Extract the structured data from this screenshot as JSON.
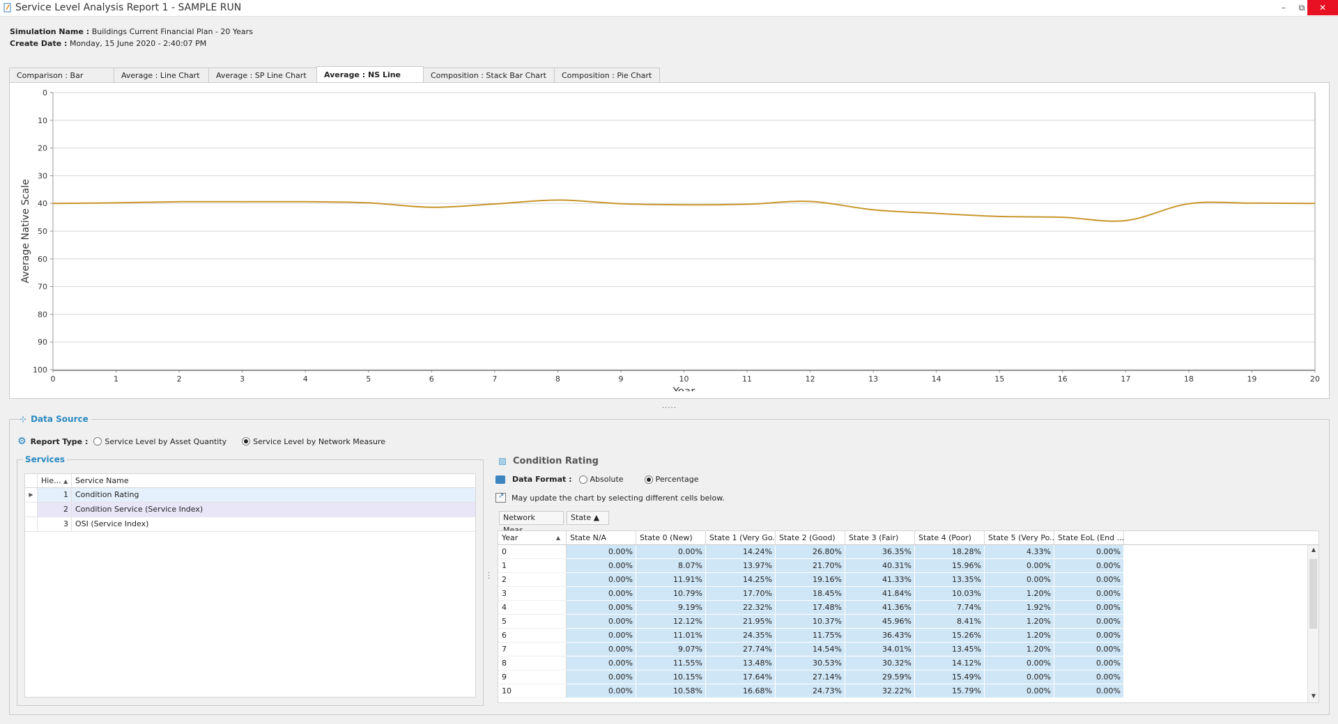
{
  "window": {
    "title": "Service Level Analysis Report 1 - SAMPLE RUN",
    "minimize": "–",
    "restore": "⧉",
    "close": "✕"
  },
  "simulation": {
    "name_label": "Simulation Name :",
    "name_value": "Buildings Current Financial Plan - 20 Years",
    "date_label": "Create Date :",
    "date_value": "Monday, 15 June 2020 - 2:40:07 PM"
  },
  "tabs": [
    {
      "label": "Comparison : Bar Chart",
      "active": false
    },
    {
      "label": "Average : Line Chart",
      "active": false
    },
    {
      "label": "Average : SP Line Chart",
      "active": false
    },
    {
      "label": "Average : NS Line Chart",
      "active": true
    },
    {
      "label": "Composition : Stack Bar Chart",
      "active": false
    },
    {
      "label": "Composition : Pie Chart",
      "active": false
    }
  ],
  "chart_data": {
    "type": "line",
    "title": "",
    "xlabel": "Year",
    "ylabel": "Average Native Scale",
    "x": [
      0,
      1,
      2,
      3,
      4,
      5,
      6,
      7,
      8,
      9,
      10,
      11,
      12,
      13,
      14,
      15,
      16,
      17,
      18,
      19,
      20
    ],
    "xlim": [
      0,
      20
    ],
    "ylim": [
      0,
      100
    ],
    "y_inverted": true,
    "y_ticks": [
      0,
      10,
      20,
      30,
      40,
      50,
      60,
      70,
      80,
      90,
      100
    ],
    "grid": true,
    "series": [
      {
        "values": [
          40.0,
          39.8,
          39.4,
          39.4,
          39.4,
          39.8,
          41.4,
          40.2,
          38.8,
          40.1,
          40.5,
          40.3,
          39.3,
          42.3,
          43.6,
          44.7,
          45.0,
          46.2,
          40.1,
          39.9,
          40.0
        ],
        "color": "#c8952a"
      }
    ]
  },
  "splitter": ".....",
  "data_source": {
    "title": "Data Source",
    "report_type_label": "Report Type :",
    "options": [
      {
        "label": "Service Level by Asset Quantity",
        "selected": false
      },
      {
        "label": "Service Level by Network Measure",
        "selected": true
      }
    ]
  },
  "services": {
    "title": "Services",
    "columns": [
      "Hie...",
      "Service Name"
    ],
    "sort_icon": "▲",
    "rows": [
      {
        "hie": "1",
        "name": "Condition Rating",
        "indicator": "▶"
      },
      {
        "hie": "2",
        "name": "Condition Service (Service Index)",
        "indicator": ""
      },
      {
        "hie": "3",
        "name": "OSI (Service Index)",
        "indicator": ""
      }
    ]
  },
  "detail": {
    "title": "Condition Rating",
    "data_format_label": "Data Format :",
    "formats": [
      {
        "label": "Absolute",
        "selected": false
      },
      {
        "label": "Percentage",
        "selected": true
      }
    ],
    "hint": "May update the chart by selecting different cells below.",
    "pivot_buttons": [
      "Network Meas...",
      "State ▲"
    ],
    "columns": [
      "Year",
      "State N/A",
      "State 0 (New)",
      "State 1 (Very Go...",
      "State 2 (Good)",
      "State 3 (Fair)",
      "State 4 (Poor)",
      "State 5 (Very Po...",
      "State EoL (End ..."
    ],
    "rows": [
      [
        "0",
        "0.00%",
        "0.00%",
        "14.24%",
        "26.80%",
        "36.35%",
        "18.28%",
        "4.33%",
        "0.00%"
      ],
      [
        "1",
        "0.00%",
        "8.07%",
        "13.97%",
        "21.70%",
        "40.31%",
        "15.96%",
        "0.00%",
        "0.00%"
      ],
      [
        "2",
        "0.00%",
        "11.91%",
        "14.25%",
        "19.16%",
        "41.33%",
        "13.35%",
        "0.00%",
        "0.00%"
      ],
      [
        "3",
        "0.00%",
        "10.79%",
        "17.70%",
        "18.45%",
        "41.84%",
        "10.03%",
        "1.20%",
        "0.00%"
      ],
      [
        "4",
        "0.00%",
        "9.19%",
        "22.32%",
        "17.48%",
        "41.36%",
        "7.74%",
        "1.92%",
        "0.00%"
      ],
      [
        "5",
        "0.00%",
        "12.12%",
        "21.95%",
        "10.37%",
        "45.96%",
        "8.41%",
        "1.20%",
        "0.00%"
      ],
      [
        "6",
        "0.00%",
        "11.01%",
        "24.35%",
        "11.75%",
        "36.43%",
        "15.26%",
        "1.20%",
        "0.00%"
      ],
      [
        "7",
        "0.00%",
        "9.07%",
        "27.74%",
        "14.54%",
        "34.01%",
        "13.45%",
        "1.20%",
        "0.00%"
      ],
      [
        "8",
        "0.00%",
        "11.55%",
        "13.48%",
        "30.53%",
        "30.32%",
        "14.12%",
        "0.00%",
        "0.00%"
      ],
      [
        "9",
        "0.00%",
        "10.15%",
        "17.64%",
        "27.14%",
        "29.59%",
        "15.49%",
        "0.00%",
        "0.00%"
      ],
      [
        "10",
        "0.00%",
        "10.58%",
        "16.68%",
        "24.73%",
        "32.22%",
        "15.79%",
        "0.00%",
        "0.00%"
      ]
    ]
  }
}
